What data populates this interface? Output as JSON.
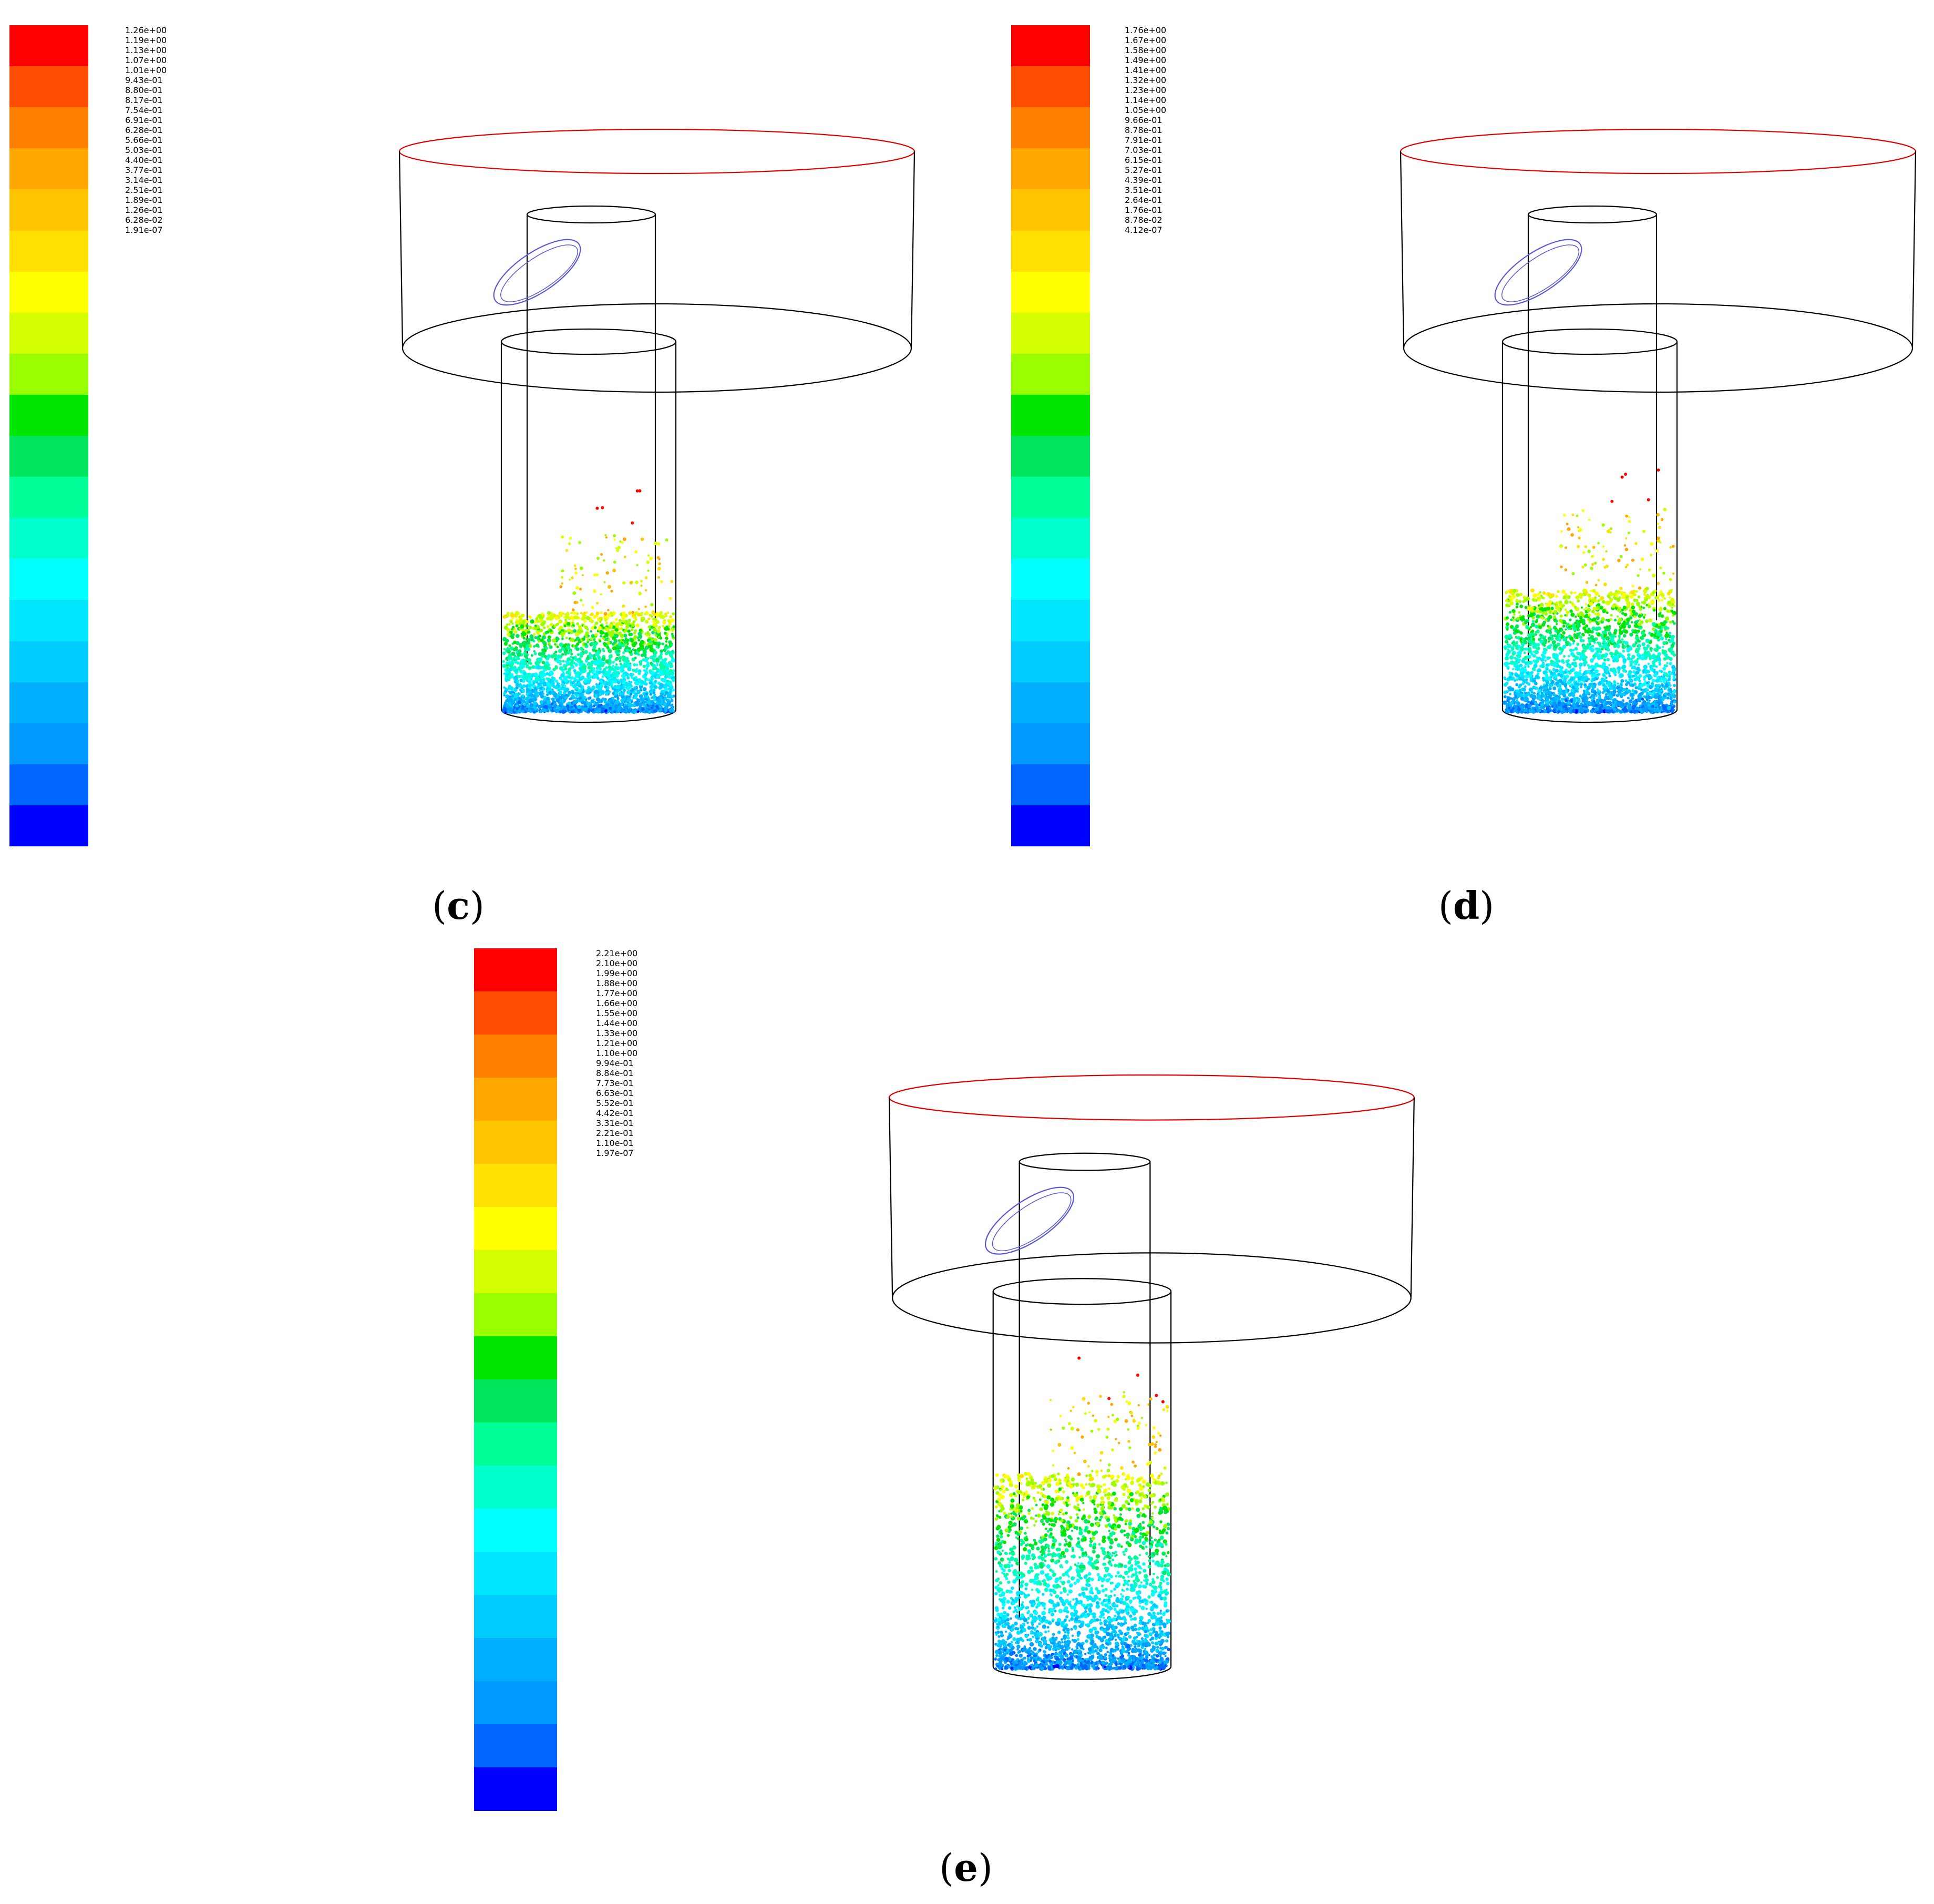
{
  "panels": [
    {
      "id": "c",
      "caption_open": "(",
      "caption_letter": "c",
      "caption_close": ")",
      "colorbar_labels": [
        "1.26e+00",
        "1.19e+00",
        "1.13e+00",
        "1.07e+00",
        "1.01e+00",
        "9.43e-01",
        "8.80e-01",
        "8.17e-01",
        "7.54e-01",
        "6.91e-01",
        "6.28e-01",
        "5.66e-01",
        "5.03e-01",
        "4.40e-01",
        "3.77e-01",
        "3.14e-01",
        "2.51e-01",
        "1.89e-01",
        "1.26e-01",
        "6.28e-02",
        "1.91e-07"
      ],
      "bed_height_fraction": 0.27,
      "seed": 11
    },
    {
      "id": "d",
      "caption_open": "(",
      "caption_letter": "d",
      "caption_close": ")",
      "colorbar_labels": [
        "1.76e+00",
        "1.67e+00",
        "1.58e+00",
        "1.49e+00",
        "1.41e+00",
        "1.32e+00",
        "1.23e+00",
        "1.14e+00",
        "1.05e+00",
        "9.66e-01",
        "8.78e-01",
        "7.91e-01",
        "7.03e-01",
        "6.15e-01",
        "5.27e-01",
        "4.39e-01",
        "3.51e-01",
        "2.64e-01",
        "1.76e-01",
        "8.78e-02",
        "4.12e-07"
      ],
      "bed_height_fraction": 0.33,
      "seed": 23
    },
    {
      "id": "e",
      "caption_open": "(",
      "caption_letter": "e",
      "caption_close": ")",
      "colorbar_labels": [
        "2.21e+00",
        "2.10e+00",
        "1.99e+00",
        "1.88e+00",
        "1.77e+00",
        "1.66e+00",
        "1.55e+00",
        "1.44e+00",
        "1.33e+00",
        "1.21e+00",
        "1.10e+00",
        "9.94e-01",
        "8.84e-01",
        "7.73e-01",
        "6.63e-01",
        "5.52e-01",
        "4.42e-01",
        "3.31e-01",
        "2.21e-01",
        "1.10e-01",
        "1.97e-07"
      ],
      "bed_height_fraction": 0.52,
      "seed": 37
    }
  ],
  "colormap": [
    "#ff0000",
    "#ff4d00",
    "#ff8000",
    "#ffa600",
    "#ffc400",
    "#ffe000",
    "#ffff00",
    "#d4ff00",
    "#99ff00",
    "#00e600",
    "#00e65c",
    "#00ff99",
    "#00ffcc",
    "#00ffff",
    "#00e6ff",
    "#00ccff",
    "#00b0ff",
    "#0099ff",
    "#0066ff",
    "#0000ff"
  ],
  "colors": {
    "outline": "#000000",
    "top_rim": "#e00000",
    "inlet_ring": "#5a5ad0"
  }
}
